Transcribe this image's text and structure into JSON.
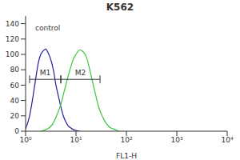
{
  "chart_data": {
    "type": "line",
    "title": "K562",
    "x_label": "FL1-H",
    "log": "x",
    "grid": false,
    "xlim": [
      1,
      10000
    ],
    "xticks": [
      {
        "value": 1,
        "label": "10⁰"
      },
      {
        "value": 10,
        "label": "10¹"
      },
      {
        "value": 100,
        "label": "10²"
      },
      {
        "value": 1000,
        "label": "10³"
      },
      {
        "value": 10000,
        "label": "10⁴"
      }
    ],
    "ylim": [
      0,
      150
    ],
    "yticks": [
      0,
      20,
      40,
      60,
      80,
      100,
      120,
      140
    ],
    "series": [
      {
        "name": "control",
        "color": "#1f1f9e",
        "x": [
          1,
          1.2,
          1.4,
          1.6,
          1.8,
          2.0,
          2.2,
          2.5,
          2.8,
          3.2,
          3.6,
          4.0,
          4.5,
          5,
          5.6,
          6.3,
          7,
          8,
          9,
          10,
          12
        ],
        "values": [
          3,
          20,
          45,
          70,
          90,
          100,
          104,
          107,
          102,
          92,
          78,
          60,
          45,
          32,
          20,
          12,
          7,
          4,
          2,
          1,
          0
        ]
      },
      {
        "color": "#3cc43c",
        "x": [
          2,
          2.5,
          3,
          3.5,
          4,
          5,
          6,
          7,
          8,
          9,
          10,
          11,
          12,
          13,
          14,
          16,
          18,
          20,
          22,
          25,
          28,
          32,
          36,
          40,
          45,
          50,
          60,
          70
        ],
        "values": [
          0,
          2,
          5,
          10,
          18,
          35,
          55,
          72,
          85,
          95,
          100,
          104,
          106,
          105,
          103,
          97,
          85,
          72,
          60,
          45,
          32,
          22,
          15,
          10,
          6,
          4,
          2,
          0
        ]
      }
    ],
    "annotations": [
      {
        "label": "M1",
        "range": [
          1.2,
          5
        ]
      },
      {
        "label": "M2",
        "range": [
          5,
          30
        ]
      }
    ]
  }
}
